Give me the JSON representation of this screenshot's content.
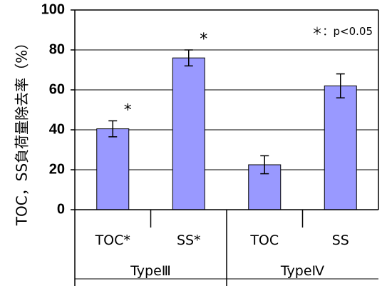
{
  "chart_data": {
    "type": "bar",
    "categories": [
      "TOC*",
      "SS*",
      "TOC",
      "SS"
    ],
    "groups": [
      {
        "label": "TypeⅢ",
        "span": [
          0,
          1
        ]
      },
      {
        "label": "TypeⅣ",
        "span": [
          2,
          3
        ]
      }
    ],
    "values": [
      40.5,
      76.0,
      22.5,
      62.0
    ],
    "errors": [
      4.0,
      4.0,
      4.5,
      6.0
    ],
    "significance": [
      "*",
      "*",
      "",
      ""
    ],
    "ylabel": "TOC，SS負荷量除去率（%）",
    "ylim": [
      0,
      100
    ],
    "yticks": [
      0,
      20,
      40,
      60,
      80,
      100
    ],
    "ytick_labels": [
      "0",
      "20",
      "40",
      "60",
      "80",
      "100"
    ],
    "grid": true,
    "annotation": "＊：p<0.05",
    "colors": {
      "bar_fill": "#9999ff",
      "bar_stroke": "#000000",
      "grid": "#000000"
    }
  }
}
